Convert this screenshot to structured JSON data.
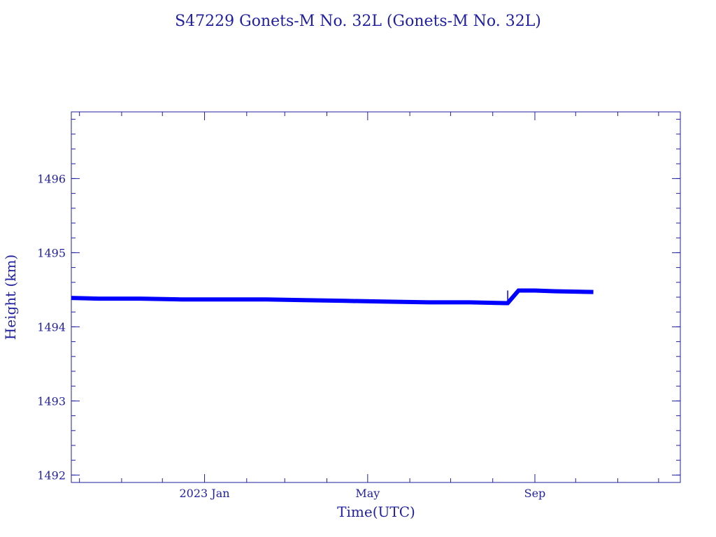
{
  "chart_data": {
    "type": "line",
    "title": "S47229 Gonets-M No. 32L  (Gonets-M No. 32L)",
    "xlabel": "Time(UTC)",
    "ylabel": "Height (km)",
    "ylim": [
      1491.9,
      1496.9
    ],
    "xlim": [
      "2022-09-25",
      "2023-12-17"
    ],
    "x_ticks": [
      {
        "date": "2023-01-01",
        "label": "2023 Jan"
      },
      {
        "date": "2023-05-01",
        "label": "May"
      },
      {
        "date": "2023-09-01",
        "label": "Sep"
      }
    ],
    "y_ticks": [
      1492,
      1493,
      1494,
      1495,
      1496
    ],
    "y_minor_step": 0.2,
    "x_minor_ticks": [
      "2022-10-01",
      "2022-11-01",
      "2022-12-01",
      "2023-02-01",
      "2023-03-01",
      "2023-04-01",
      "2023-06-01",
      "2023-07-01",
      "2023-08-01",
      "2023-10-01",
      "2023-11-01",
      "2023-12-01"
    ],
    "colors": {
      "axis": "#1f1fa0",
      "series": "#0000ff"
    },
    "series": [
      {
        "x": [
          "2022-09-25",
          "2022-10-15",
          "2022-11-15",
          "2022-12-15",
          "2023-01-15",
          "2023-02-15",
          "2023-03-15",
          "2023-04-15",
          "2023-05-15",
          "2023-06-15",
          "2023-07-15",
          "2023-08-10",
          "2023-08-12",
          "2023-08-20",
          "2023-09-01",
          "2023-09-15",
          "2023-10-14"
        ],
        "y": [
          1494.39,
          1494.38,
          1494.38,
          1494.37,
          1494.37,
          1494.37,
          1494.36,
          1494.35,
          1494.34,
          1494.33,
          1494.33,
          1494.32,
          1494.32,
          1494.49,
          1494.49,
          1494.48,
          1494.47
        ]
      }
    ]
  }
}
